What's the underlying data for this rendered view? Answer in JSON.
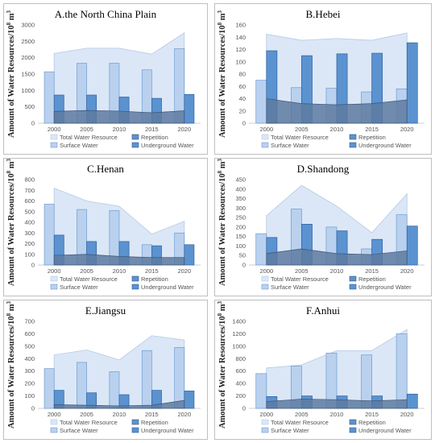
{
  "legend_labels": [
    "Total Water Resource",
    "Repetition",
    "Surface Water",
    "Underground Water"
  ],
  "ylabel_prefix": "Amount of Water Resources/10",
  "ylabel_exp": "8",
  "ylabel_unit": " m",
  "ylabel_unit_exp": "3",
  "colors": {
    "total_fill": "#dbe7f6",
    "total_stroke": "#b4c9e6",
    "surface_fill": "#b9d1ee",
    "surface_stroke": "#6d9bd4",
    "underground_fill": "#5b93d0",
    "underground_stroke": "#2c5f9e",
    "repetition_fill": "#5d7aa0",
    "repetition_stroke": "#3d5578"
  },
  "chart_data": [
    {
      "type": "bar",
      "title": "A.the North China Plain",
      "categories": [
        "2000",
        "2005",
        "2010",
        "2015",
        "2020"
      ],
      "ylim": [
        0,
        3000
      ],
      "yticks": [
        0,
        500,
        1000,
        1500,
        2000,
        2500,
        3000
      ],
      "series": [
        {
          "name": "Total Water Resource",
          "kind": "area",
          "values": [
            2130,
            2290,
            2290,
            2110,
            2760
          ]
        },
        {
          "name": "Repetition",
          "kind": "area",
          "values": [
            360,
            390,
            370,
            320,
            380
          ]
        },
        {
          "name": "Surface Water",
          "kind": "bar",
          "values": [
            1570,
            1830,
            1830,
            1630,
            2280
          ]
        },
        {
          "name": "Underground Water",
          "kind": "bar",
          "values": [
            860,
            860,
            800,
            760,
            880
          ]
        }
      ]
    },
    {
      "type": "bar",
      "title": "B.Hebei",
      "categories": [
        "2000",
        "2005",
        "2010",
        "2015",
        "2020"
      ],
      "ylim": [
        0,
        160
      ],
      "yticks": [
        0,
        20,
        40,
        60,
        80,
        100,
        120,
        140,
        160
      ],
      "series": [
        {
          "name": "Total Water Resource",
          "kind": "area",
          "values": [
            145,
            135,
            138,
            135,
            147
          ]
        },
        {
          "name": "Repetition",
          "kind": "area",
          "values": [
            40,
            32,
            30,
            32,
            38
          ]
        },
        {
          "name": "Surface Water",
          "kind": "bar",
          "values": [
            70,
            58,
            57,
            51,
            56
          ]
        },
        {
          "name": "Underground Water",
          "kind": "bar",
          "values": [
            118,
            110,
            113,
            114,
            131
          ]
        }
      ]
    },
    {
      "type": "bar",
      "title": "C.Henan",
      "categories": [
        "2000",
        "2005",
        "2010",
        "2015",
        "2020"
      ],
      "ylim": [
        0,
        800
      ],
      "yticks": [
        0,
        100,
        200,
        300,
        400,
        500,
        600,
        700,
        800
      ],
      "series": [
        {
          "name": "Total Water Resource",
          "kind": "area",
          "values": [
            720,
            600,
            550,
            290,
            410
          ]
        },
        {
          "name": "Repetition",
          "kind": "area",
          "values": [
            90,
            100,
            80,
            70,
            70
          ]
        },
        {
          "name": "Surface Water",
          "kind": "bar",
          "values": [
            570,
            520,
            510,
            190,
            300
          ]
        },
        {
          "name": "Underground Water",
          "kind": "bar",
          "values": [
            280,
            220,
            220,
            180,
            190
          ]
        }
      ]
    },
    {
      "type": "bar",
      "title": "D.Shandong",
      "categories": [
        "2000",
        "2005",
        "2010",
        "2015",
        "2020"
      ],
      "ylim": [
        0,
        450
      ],
      "yticks": [
        0,
        50,
        100,
        150,
        200,
        250,
        300,
        350,
        400,
        450
      ],
      "series": [
        {
          "name": "Total Water Resource",
          "kind": "area",
          "values": [
            260,
            420,
            310,
            170,
            375
          ]
        },
        {
          "name": "Repetition",
          "kind": "area",
          "values": [
            60,
            85,
            60,
            55,
            75
          ]
        },
        {
          "name": "Surface Water",
          "kind": "bar",
          "values": [
            165,
            295,
            200,
            85,
            265
          ]
        },
        {
          "name": "Underground Water",
          "kind": "bar",
          "values": [
            145,
            215,
            180,
            135,
            205
          ]
        }
      ]
    },
    {
      "type": "bar",
      "title": "E.Jiangsu",
      "categories": [
        "2000",
        "2005",
        "2010",
        "2015",
        "2020"
      ],
      "ylim": [
        0,
        700
      ],
      "yticks": [
        0,
        100,
        200,
        300,
        400,
        500,
        600,
        700
      ],
      "series": [
        {
          "name": "Total Water Resource",
          "kind": "area",
          "values": [
            430,
            470,
            390,
            585,
            550
          ]
        },
        {
          "name": "Repetition",
          "kind": "area",
          "values": [
            30,
            25,
            20,
            25,
            65
          ]
        },
        {
          "name": "Surface Water",
          "kind": "bar",
          "values": [
            320,
            370,
            295,
            465,
            490
          ]
        },
        {
          "name": "Underground Water",
          "kind": "bar",
          "values": [
            145,
            125,
            110,
            145,
            140
          ]
        }
      ]
    },
    {
      "type": "bar",
      "title": "F.Anhui",
      "categories": [
        "2000",
        "2005",
        "2010",
        "2015",
        "2020"
      ],
      "ylim": [
        0,
        1400
      ],
      "yticks": [
        0,
        200,
        400,
        600,
        800,
        1000,
        1200,
        1400
      ],
      "series": [
        {
          "name": "Total Water Resource",
          "kind": "area",
          "values": [
            650,
            700,
            930,
            930,
            1270
          ]
        },
        {
          "name": "Repetition",
          "kind": "area",
          "values": [
            110,
            150,
            140,
            120,
            140
          ]
        },
        {
          "name": "Surface Water",
          "kind": "bar",
          "values": [
            560,
            680,
            890,
            860,
            1200
          ]
        },
        {
          "name": "Underground Water",
          "kind": "bar",
          "values": [
            190,
            200,
            200,
            200,
            230
          ]
        }
      ]
    }
  ]
}
